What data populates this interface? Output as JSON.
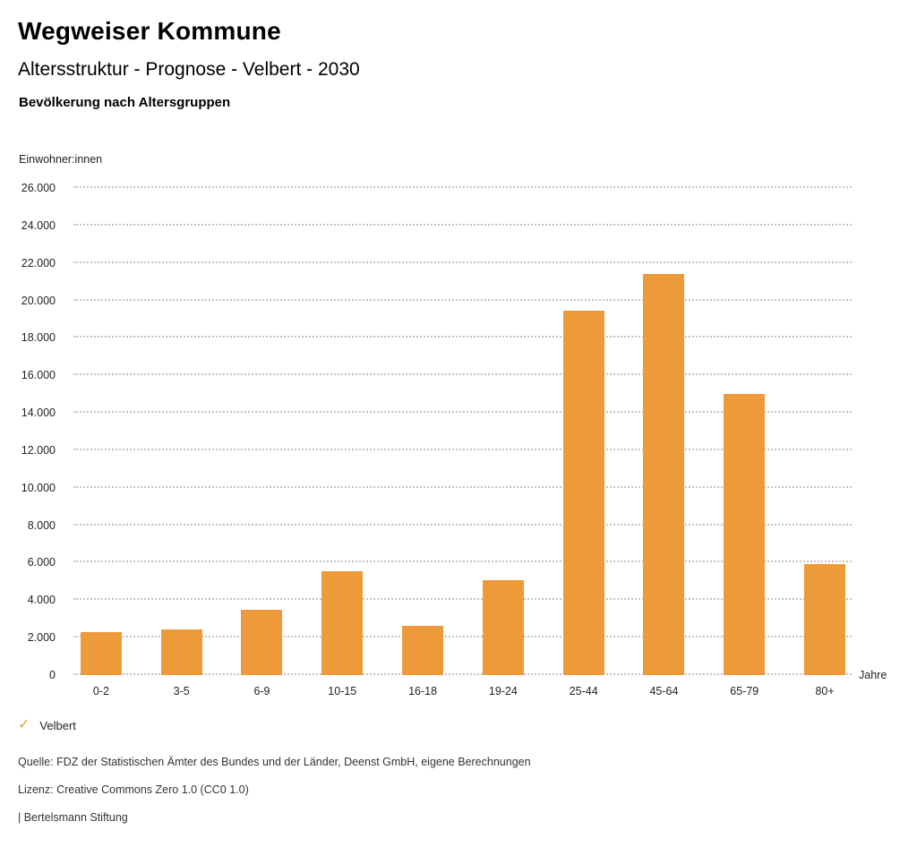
{
  "header": {
    "title": "Wegweiser Kommune",
    "subtitle": "Altersstruktur - Prognose - Velbert - 2030",
    "chart_heading": "Bevölkerung nach Altersgruppen"
  },
  "chart_data": {
    "type": "bar",
    "title": "Bevölkerung nach Altersgruppen",
    "ylabel": "Einwohner:innen",
    "xlabel": "Jahre",
    "categories": [
      "0-2",
      "3-5",
      "6-9",
      "10-15",
      "16-18",
      "19-24",
      "25-44",
      "45-64",
      "65-79",
      "80+"
    ],
    "series": [
      {
        "name": "Velbert",
        "values": [
          2300,
          2450,
          3500,
          5550,
          2650,
          5050,
          19450,
          21400,
          15000,
          5950
        ]
      }
    ],
    "ylim": [
      0,
      26000
    ],
    "y_step": 2000,
    "y_ticks": [
      {
        "value": 0,
        "label": "0"
      },
      {
        "value": 2000,
        "label": "2.000"
      },
      {
        "value": 4000,
        "label": "4.000"
      },
      {
        "value": 6000,
        "label": "6.000"
      },
      {
        "value": 8000,
        "label": "8.000"
      },
      {
        "value": 10000,
        "label": "10.000"
      },
      {
        "value": 12000,
        "label": "12.000"
      },
      {
        "value": 14000,
        "label": "14.000"
      },
      {
        "value": 16000,
        "label": "16.000"
      },
      {
        "value": 18000,
        "label": "18.000"
      },
      {
        "value": 20000,
        "label": "20.000"
      },
      {
        "value": 22000,
        "label": "22.000"
      },
      {
        "value": 24000,
        "label": "24.000"
      },
      {
        "value": 26000,
        "label": "26.000"
      }
    ],
    "grid": "horizontal-dotted",
    "legend_position": "bottom-left",
    "bar_color": "#ED9A3A"
  },
  "legend": {
    "check_icon": "✓",
    "label": "Velbert",
    "color": "#ED9A3A"
  },
  "footer": {
    "source": "Quelle: FDZ der Statistischen Ämter des Bundes und der Länder, Deenst GmbH, eigene Berechnungen",
    "license": "Lizenz: Creative Commons Zero 1.0 (CC0 1.0)",
    "attribution": "| Bertelsmann Stiftung"
  }
}
